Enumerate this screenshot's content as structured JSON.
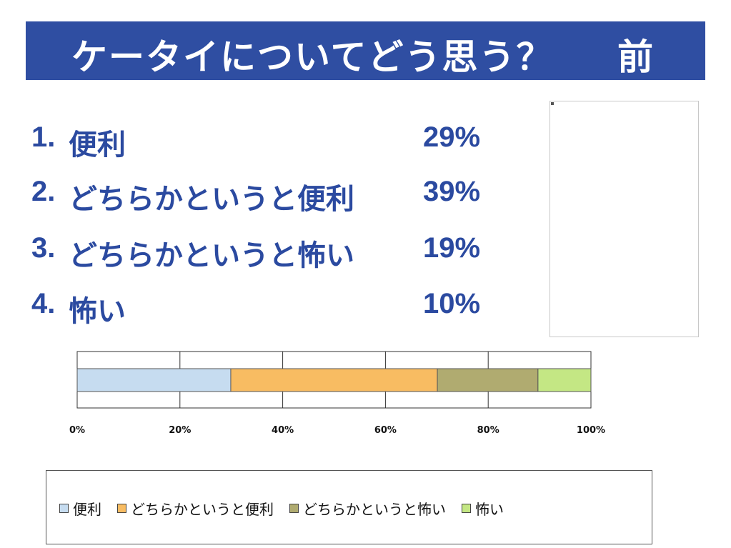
{
  "header": {
    "title": "ケータイについてどう思う？",
    "suffix": "前"
  },
  "options": [
    {
      "num": "1.",
      "label": "便利",
      "pct": "29%"
    },
    {
      "num": "2.",
      "label": "どちらかというと便利",
      "pct": "39%"
    },
    {
      "num": "3.",
      "label": "どちらかというと怖い",
      "pct": "19%"
    },
    {
      "num": "4.",
      "label": "怖い",
      "pct": "10%"
    }
  ],
  "chart_data": {
    "type": "bar",
    "orientation": "horizontal",
    "stacked": true,
    "percent_stacked": true,
    "series": [
      {
        "name": "便利",
        "value": 29,
        "color": "#c6dcf0"
      },
      {
        "name": "どちらかというと便利",
        "value": 39,
        "color": "#f8bc62"
      },
      {
        "name": "どちらかというと怖い",
        "value": 19,
        "color": "#b0ab70"
      },
      {
        "name": "怖い",
        "value": 10,
        "color": "#c4e784"
      }
    ],
    "xlim": [
      0,
      100
    ],
    "xticks": [
      "0%",
      "20%",
      "40%",
      "60%",
      "80%",
      "100%"
    ],
    "grid": true,
    "legend_position": "bottom"
  }
}
